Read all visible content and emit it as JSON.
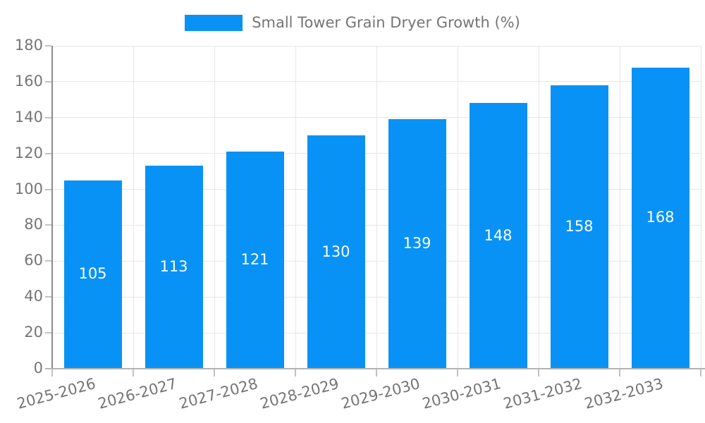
{
  "chart_data": {
    "type": "bar",
    "title": "Small Tower Grain Dryer Growth (%)",
    "categories": [
      "2025-2026",
      "2026-2027",
      "2027-2028",
      "2028-2029",
      "2029-2030",
      "2030-2031",
      "2031-2032",
      "2032-2033"
    ],
    "values": [
      105,
      113,
      121,
      130,
      139,
      148,
      158,
      168
    ],
    "xlabel": "",
    "ylabel": "",
    "ylim": [
      0,
      180
    ],
    "ytick_step": 20,
    "yticks": [
      0,
      20,
      40,
      60,
      80,
      100,
      120,
      140,
      160,
      180
    ],
    "grid": true,
    "legend_position": "top-center",
    "bar_color": "#0892f5",
    "value_label_color": "#ffffff",
    "axis_text_color": "#757575",
    "grid_color": "#e6e6e6",
    "y_axis_line_color": "#8c8c8c",
    "x_axis_line_color": "#b3b3b3",
    "background_color": "#ffffff"
  }
}
